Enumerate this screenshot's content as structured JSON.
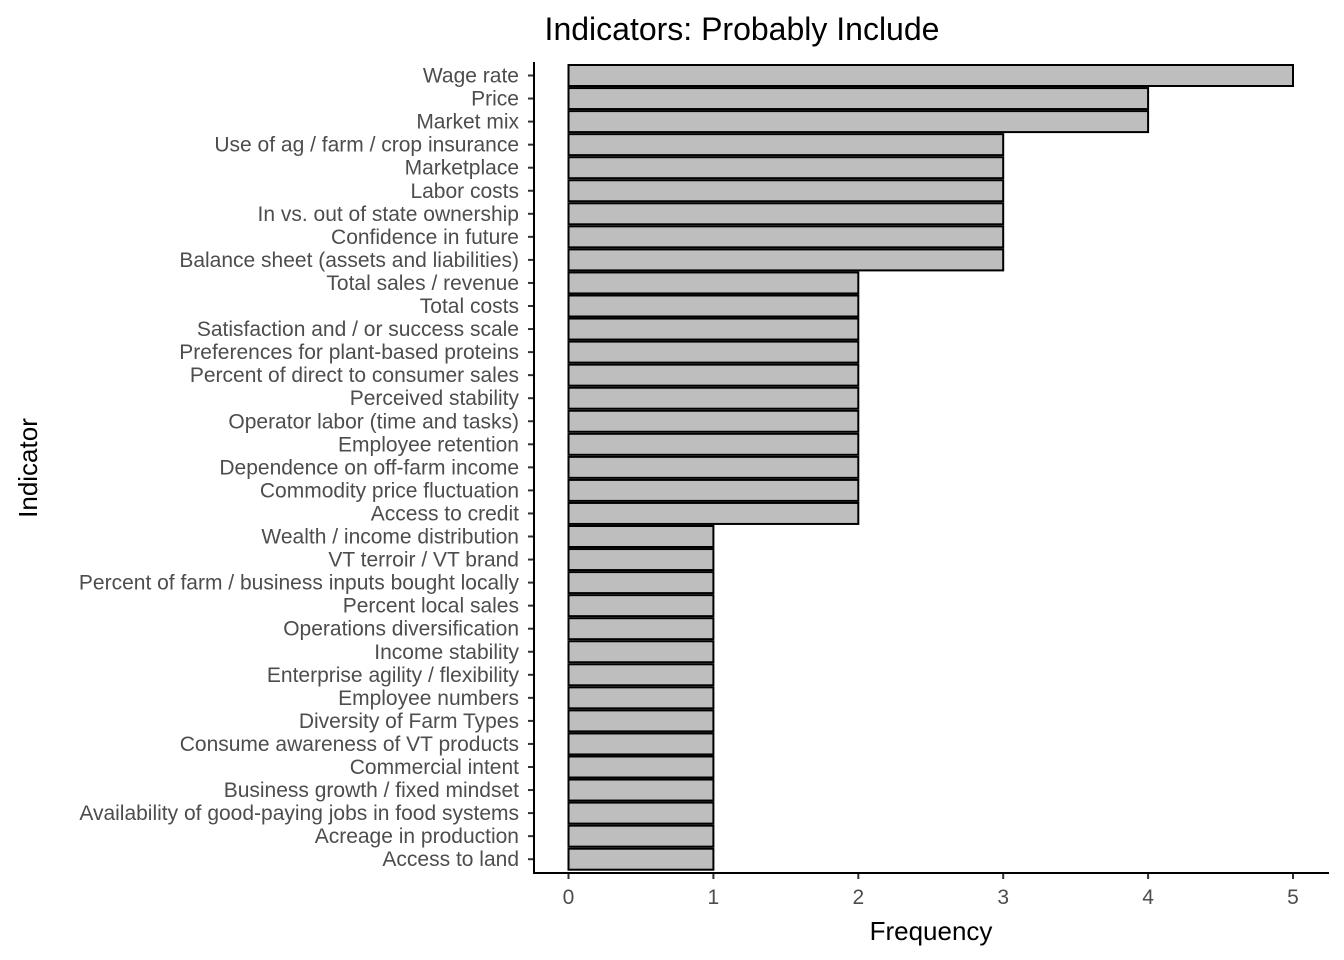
{
  "chart_data": {
    "type": "bar",
    "orientation": "horizontal",
    "title": "Indicators: Probably Include",
    "xlabel": "Frequency",
    "ylabel": "Indicator",
    "xlim": [
      0,
      5
    ],
    "xticks": [
      0,
      1,
      2,
      3,
      4,
      5
    ],
    "grid": false,
    "categories": [
      "Wage rate",
      "Price",
      "Market mix",
      "Use of ag / farm / crop insurance",
      "Marketplace",
      "Labor costs",
      "In vs. out of state ownership",
      "Confidence in future",
      "Balance sheet (assets and liabilities)",
      "Total sales / revenue",
      "Total costs",
      "Satisfaction and / or success scale",
      "Preferences for plant-based proteins",
      "Percent of direct to consumer sales",
      "Perceived stability",
      "Operator labor (time and tasks)",
      "Employee retention",
      "Dependence on off-farm income",
      "Commodity price fluctuation",
      "Access to credit",
      "Wealth / income distribution",
      "VT terroir / VT brand",
      "Percent of farm / business inputs bought locally",
      "Percent local sales",
      "Operations diversification",
      "Income stability",
      "Enterprise agility / flexibility",
      "Employee numbers",
      "Diversity of Farm Types",
      "Consume awareness of VT products",
      "Commercial intent",
      "Business growth / fixed mindset",
      "Availability of good-paying jobs in food systems",
      "Acreage in production",
      "Access to land"
    ],
    "values": [
      5,
      4,
      4,
      3,
      3,
      3,
      3,
      3,
      3,
      2,
      2,
      2,
      2,
      2,
      2,
      2,
      2,
      2,
      2,
      2,
      1,
      1,
      1,
      1,
      1,
      1,
      1,
      1,
      1,
      1,
      1,
      1,
      1,
      1,
      1
    ],
    "colors": {
      "bar_fill": "#bebebe",
      "bar_stroke": "#000000"
    }
  }
}
